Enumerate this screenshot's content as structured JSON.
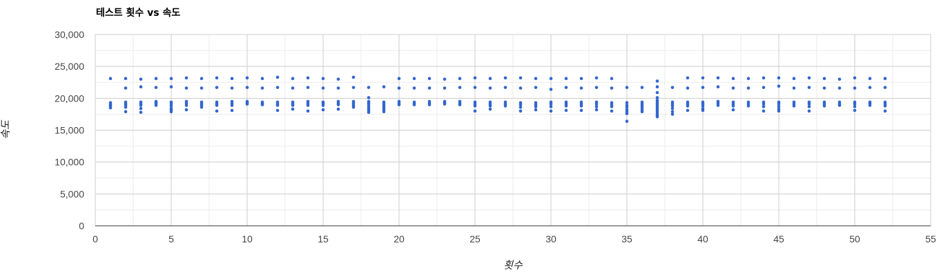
{
  "chart_data": {
    "type": "scatter",
    "title": "테스트 횟수 vs 속도",
    "xlabel": "횟수",
    "ylabel": "속도",
    "xlim": [
      0,
      55
    ],
    "ylim": [
      0,
      30000
    ],
    "x_ticks": [
      0,
      5,
      10,
      15,
      20,
      25,
      30,
      35,
      40,
      45,
      50,
      55
    ],
    "x_tick_labels": [
      "0",
      "5",
      "10",
      "15",
      "20",
      "25",
      "30",
      "35",
      "40",
      "45",
      "50",
      "55"
    ],
    "y_ticks": [
      0,
      5000,
      10000,
      15000,
      20000,
      25000,
      30000
    ],
    "y_tick_labels": [
      "0",
      "5,000",
      "10,000",
      "15,000",
      "20,000",
      "25,000",
      "30,000"
    ],
    "grid": true,
    "legend": "none",
    "point_color": "#3366cc",
    "series": [
      {
        "points": [
          [
            1,
            23100
          ],
          [
            1,
            19300
          ],
          [
            1,
            19000
          ],
          [
            1,
            18800
          ],
          [
            1,
            18500
          ],
          [
            2,
            23100
          ],
          [
            2,
            21600
          ],
          [
            2,
            19400
          ],
          [
            2,
            19100
          ],
          [
            2,
            18900
          ],
          [
            2,
            18600
          ],
          [
            2,
            17900
          ],
          [
            3,
            23000
          ],
          [
            3,
            21800
          ],
          [
            3,
            19400
          ],
          [
            3,
            19100
          ],
          [
            3,
            18900
          ],
          [
            3,
            18400
          ],
          [
            3,
            17800
          ],
          [
            4,
            23100
          ],
          [
            4,
            21700
          ],
          [
            4,
            19500
          ],
          [
            4,
            19300
          ],
          [
            4,
            19100
          ],
          [
            4,
            18900
          ],
          [
            5,
            23100
          ],
          [
            5,
            21800
          ],
          [
            5,
            19400
          ],
          [
            5,
            19100
          ],
          [
            5,
            18800
          ],
          [
            5,
            18400
          ],
          [
            5,
            18200
          ],
          [
            5,
            17900
          ],
          [
            6,
            23200
          ],
          [
            6,
            21600
          ],
          [
            6,
            19500
          ],
          [
            6,
            19200
          ],
          [
            6,
            18900
          ],
          [
            6,
            18200
          ],
          [
            7,
            23100
          ],
          [
            7,
            21600
          ],
          [
            7,
            19400
          ],
          [
            7,
            19100
          ],
          [
            7,
            18900
          ],
          [
            7,
            18600
          ],
          [
            8,
            23200
          ],
          [
            8,
            21700
          ],
          [
            8,
            19400
          ],
          [
            8,
            19100
          ],
          [
            8,
            18900
          ],
          [
            8,
            18000
          ],
          [
            9,
            23100
          ],
          [
            9,
            21600
          ],
          [
            9,
            19500
          ],
          [
            9,
            19200
          ],
          [
            9,
            18900
          ],
          [
            9,
            18100
          ],
          [
            10,
            23200
          ],
          [
            10,
            21700
          ],
          [
            10,
            19500
          ],
          [
            10,
            19300
          ],
          [
            10,
            19100
          ],
          [
            11,
            23100
          ],
          [
            11,
            21600
          ],
          [
            11,
            19400
          ],
          [
            11,
            19200
          ],
          [
            11,
            19000
          ],
          [
            12,
            23300
          ],
          [
            12,
            21700
          ],
          [
            12,
            19400
          ],
          [
            12,
            19100
          ],
          [
            12,
            18900
          ],
          [
            12,
            18100
          ],
          [
            13,
            23100
          ],
          [
            13,
            21600
          ],
          [
            13,
            19400
          ],
          [
            13,
            19100
          ],
          [
            13,
            18900
          ],
          [
            13,
            18300
          ],
          [
            14,
            23200
          ],
          [
            14,
            21700
          ],
          [
            14,
            19500
          ],
          [
            14,
            19200
          ],
          [
            14,
            18900
          ],
          [
            14,
            18000
          ],
          [
            15,
            23100
          ],
          [
            15,
            21600
          ],
          [
            15,
            19400
          ],
          [
            15,
            19200
          ],
          [
            15,
            18900
          ],
          [
            15,
            18200
          ],
          [
            16,
            23000
          ],
          [
            16,
            21600
          ],
          [
            16,
            19500
          ],
          [
            16,
            19200
          ],
          [
            16,
            19000
          ],
          [
            16,
            18300
          ],
          [
            17,
            23300
          ],
          [
            17,
            21700
          ],
          [
            17,
            19500
          ],
          [
            17,
            19200
          ],
          [
            17,
            18900
          ],
          [
            17,
            18600
          ],
          [
            18,
            21700
          ],
          [
            18,
            20100
          ],
          [
            18,
            19500
          ],
          [
            18,
            19200
          ],
          [
            18,
            18900
          ],
          [
            18,
            18600
          ],
          [
            18,
            18300
          ],
          [
            18,
            18000
          ],
          [
            18,
            17800
          ],
          [
            19,
            21800
          ],
          [
            19,
            19400
          ],
          [
            19,
            19100
          ],
          [
            19,
            18800
          ],
          [
            19,
            18500
          ],
          [
            19,
            18200
          ],
          [
            19,
            17900
          ],
          [
            20,
            23100
          ],
          [
            20,
            21600
          ],
          [
            20,
            19500
          ],
          [
            20,
            19200
          ],
          [
            20,
            19000
          ],
          [
            21,
            23100
          ],
          [
            21,
            21600
          ],
          [
            21,
            19400
          ],
          [
            21,
            19200
          ],
          [
            21,
            19000
          ],
          [
            22,
            23100
          ],
          [
            22,
            21600
          ],
          [
            22,
            19500
          ],
          [
            22,
            19200
          ],
          [
            22,
            19000
          ],
          [
            23,
            23000
          ],
          [
            23,
            21600
          ],
          [
            23,
            19500
          ],
          [
            23,
            19300
          ],
          [
            23,
            19100
          ],
          [
            24,
            23100
          ],
          [
            24,
            21700
          ],
          [
            24,
            19500
          ],
          [
            24,
            19200
          ],
          [
            24,
            19000
          ],
          [
            25,
            23200
          ],
          [
            25,
            21700
          ],
          [
            25,
            19400
          ],
          [
            25,
            19100
          ],
          [
            25,
            18800
          ],
          [
            25,
            18000
          ],
          [
            26,
            23100
          ],
          [
            26,
            21600
          ],
          [
            26,
            19400
          ],
          [
            26,
            19100
          ],
          [
            26,
            18800
          ],
          [
            26,
            18300
          ],
          [
            27,
            23200
          ],
          [
            27,
            21700
          ],
          [
            27,
            19400
          ],
          [
            27,
            19100
          ],
          [
            27,
            18800
          ],
          [
            28,
            23200
          ],
          [
            28,
            21600
          ],
          [
            28,
            19300
          ],
          [
            28,
            19000
          ],
          [
            28,
            18600
          ],
          [
            28,
            18000
          ],
          [
            29,
            23100
          ],
          [
            29,
            21700
          ],
          [
            29,
            19300
          ],
          [
            29,
            19000
          ],
          [
            29,
            18700
          ],
          [
            29,
            18200
          ],
          [
            30,
            23100
          ],
          [
            30,
            21400
          ],
          [
            30,
            19400
          ],
          [
            30,
            19100
          ],
          [
            30,
            18700
          ],
          [
            30,
            18000
          ],
          [
            31,
            23100
          ],
          [
            31,
            21700
          ],
          [
            31,
            19400
          ],
          [
            31,
            19100
          ],
          [
            31,
            18800
          ],
          [
            31,
            18100
          ],
          [
            32,
            23100
          ],
          [
            32,
            21600
          ],
          [
            32,
            19400
          ],
          [
            32,
            19100
          ],
          [
            32,
            18800
          ],
          [
            32,
            18100
          ],
          [
            33,
            23200
          ],
          [
            33,
            21700
          ],
          [
            33,
            19400
          ],
          [
            33,
            19100
          ],
          [
            33,
            18700
          ],
          [
            33,
            18200
          ],
          [
            34,
            23100
          ],
          [
            34,
            21600
          ],
          [
            34,
            19300
          ],
          [
            34,
            19000
          ],
          [
            34,
            18700
          ],
          [
            34,
            18000
          ],
          [
            35,
            21700
          ],
          [
            35,
            19300
          ],
          [
            35,
            18900
          ],
          [
            35,
            18600
          ],
          [
            35,
            18200
          ],
          [
            35,
            17900
          ],
          [
            35,
            17600
          ],
          [
            35,
            16400
          ],
          [
            36,
            21700
          ],
          [
            36,
            19400
          ],
          [
            36,
            19100
          ],
          [
            36,
            18800
          ],
          [
            36,
            18500
          ],
          [
            36,
            18200
          ],
          [
            36,
            17900
          ],
          [
            37,
            22700
          ],
          [
            37,
            21800
          ],
          [
            37,
            20900
          ],
          [
            37,
            20100
          ],
          [
            37,
            19700
          ],
          [
            37,
            19400
          ],
          [
            37,
            19100
          ],
          [
            37,
            18800
          ],
          [
            37,
            18500
          ],
          [
            37,
            18200
          ],
          [
            37,
            17900
          ],
          [
            37,
            17600
          ],
          [
            37,
            17300
          ],
          [
            37,
            17100
          ],
          [
            38,
            21700
          ],
          [
            38,
            19400
          ],
          [
            38,
            19100
          ],
          [
            38,
            18800
          ],
          [
            38,
            18400
          ],
          [
            38,
            17900
          ],
          [
            38,
            17500
          ],
          [
            39,
            23200
          ],
          [
            39,
            21600
          ],
          [
            39,
            19400
          ],
          [
            39,
            19100
          ],
          [
            39,
            18800
          ],
          [
            39,
            18100
          ],
          [
            40,
            23200
          ],
          [
            40,
            21700
          ],
          [
            40,
            19400
          ],
          [
            40,
            19100
          ],
          [
            40,
            18800
          ],
          [
            40,
            18400
          ],
          [
            40,
            18100
          ],
          [
            41,
            23200
          ],
          [
            41,
            21800
          ],
          [
            41,
            19500
          ],
          [
            41,
            19200
          ],
          [
            41,
            18900
          ],
          [
            42,
            23100
          ],
          [
            42,
            21600
          ],
          [
            42,
            19400
          ],
          [
            42,
            19100
          ],
          [
            42,
            18800
          ],
          [
            42,
            18200
          ],
          [
            43,
            23100
          ],
          [
            43,
            21600
          ],
          [
            43,
            19400
          ],
          [
            43,
            19100
          ],
          [
            43,
            18800
          ],
          [
            44,
            23200
          ],
          [
            44,
            21700
          ],
          [
            44,
            19400
          ],
          [
            44,
            19100
          ],
          [
            44,
            18700
          ],
          [
            44,
            18000
          ],
          [
            45,
            23200
          ],
          [
            45,
            21900
          ],
          [
            45,
            19400
          ],
          [
            45,
            19100
          ],
          [
            45,
            18700
          ],
          [
            45,
            18300
          ],
          [
            45,
            18000
          ],
          [
            46,
            23100
          ],
          [
            46,
            21600
          ],
          [
            46,
            19400
          ],
          [
            46,
            19100
          ],
          [
            46,
            18800
          ],
          [
            47,
            23200
          ],
          [
            47,
            21700
          ],
          [
            47,
            19400
          ],
          [
            47,
            19100
          ],
          [
            47,
            18700
          ],
          [
            47,
            18000
          ],
          [
            48,
            23100
          ],
          [
            48,
            21600
          ],
          [
            48,
            19400
          ],
          [
            48,
            19100
          ],
          [
            48,
            18800
          ],
          [
            49,
            23000
          ],
          [
            49,
            21600
          ],
          [
            49,
            19400
          ],
          [
            49,
            19100
          ],
          [
            49,
            18900
          ],
          [
            50,
            23200
          ],
          [
            50,
            21600
          ],
          [
            50,
            19400
          ],
          [
            50,
            19100
          ],
          [
            50,
            18700
          ],
          [
            50,
            18100
          ],
          [
            51,
            23100
          ],
          [
            51,
            21700
          ],
          [
            51,
            19400
          ],
          [
            51,
            19200
          ],
          [
            51,
            18900
          ],
          [
            52,
            23100
          ],
          [
            52,
            21700
          ],
          [
            52,
            19400
          ],
          [
            52,
            19100
          ],
          [
            52,
            18800
          ],
          [
            52,
            18000
          ]
        ]
      }
    ]
  }
}
